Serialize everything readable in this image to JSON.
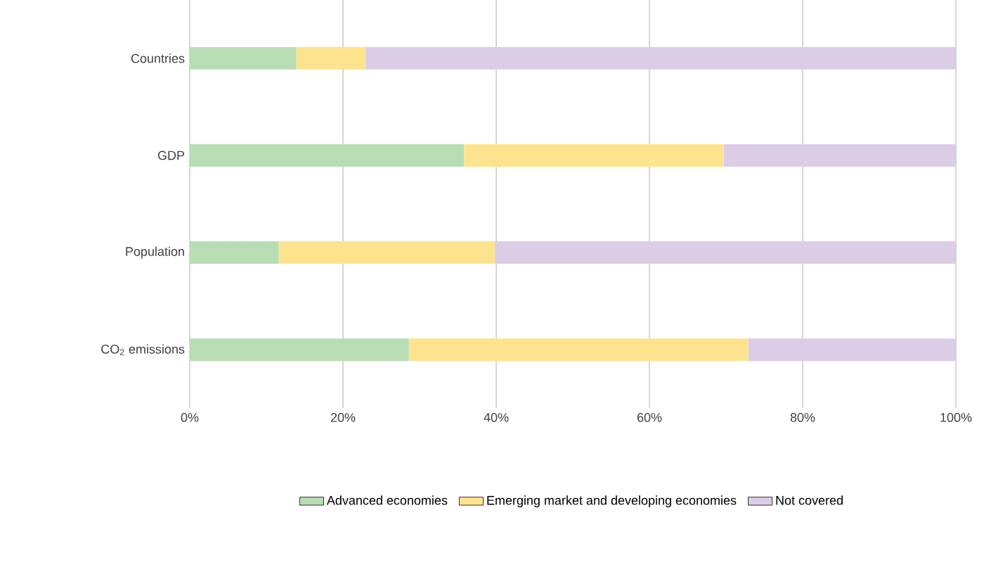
{
  "chart_data": {
    "type": "bar",
    "orientation": "horizontal",
    "stacked": true,
    "categories": [
      "Countries",
      "GDP",
      "Population",
      "CO$_{2}$ emissions"
    ],
    "series": [
      {
        "name": "Advanced economies",
        "color": "#b8ddb4",
        "values": [
          13.9,
          35.8,
          11.6,
          28.6
        ]
      },
      {
        "name": "Emerging market and developing economies",
        "color": "#fee38e",
        "values": [
          9.0,
          33.9,
          28.2,
          44.3
        ]
      },
      {
        "name": "Not covered",
        "color": "#dccde6",
        "values": [
          77.1,
          30.3,
          60.2,
          27.1
        ]
      }
    ],
    "xlim": [
      0,
      100
    ],
    "xticks": [
      {
        "value": 0,
        "label": "0%"
      },
      {
        "value": 20,
        "label": "20%"
      },
      {
        "value": 40,
        "label": "40%"
      },
      {
        "value": 60,
        "label": "60%"
      },
      {
        "value": 80,
        "label": "80%"
      },
      {
        "value": 100,
        "label": "100%"
      }
    ],
    "grid": "x",
    "legend": "bottom"
  }
}
